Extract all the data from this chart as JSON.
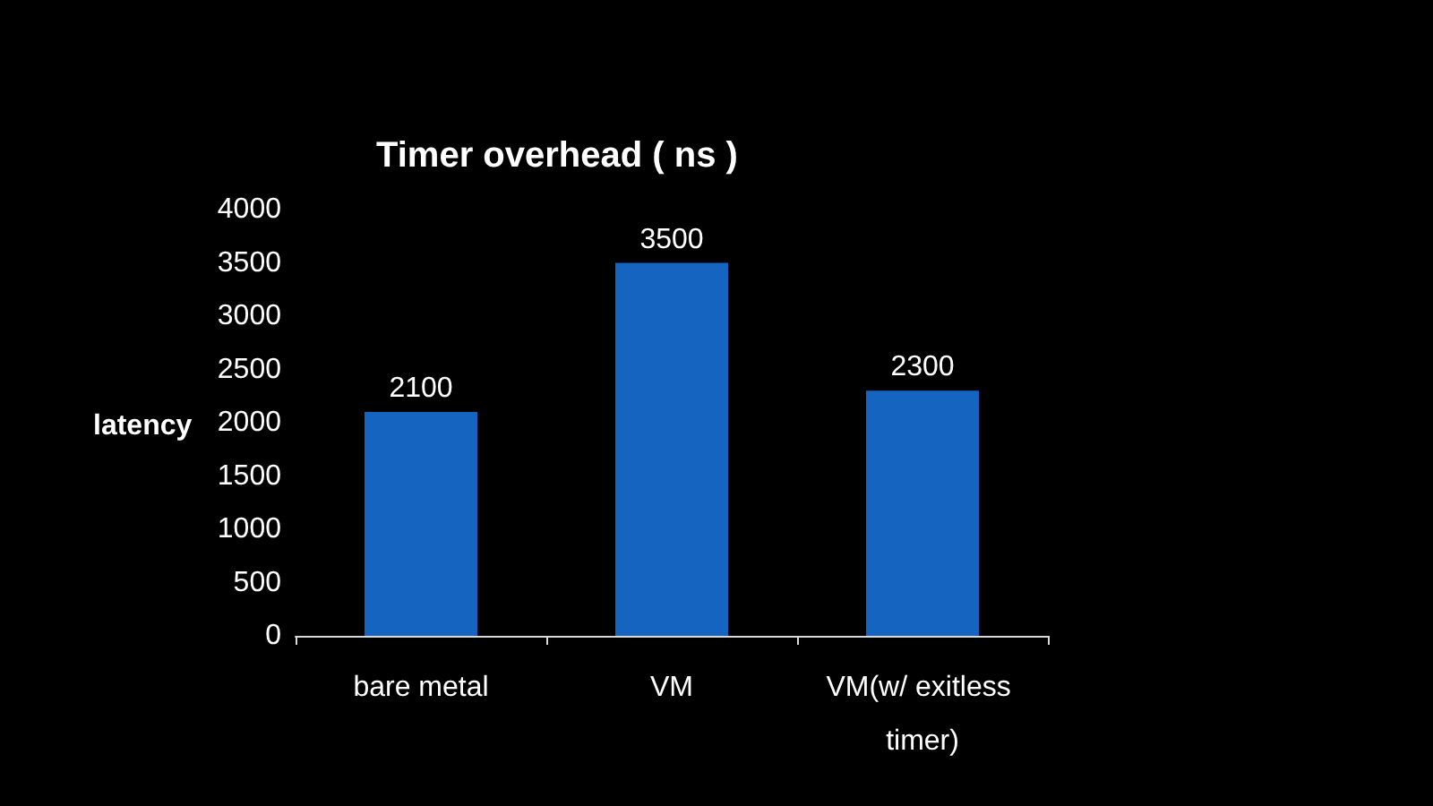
{
  "chart_data": {
    "type": "bar",
    "title": "Timer overhead ( ns )",
    "ylabel": "latency",
    "categories": [
      "bare metal",
      "VM",
      "VM(w/ exitless timer)"
    ],
    "values": [
      2100,
      3500,
      2300
    ],
    "color": "#1565c0",
    "ylim": [
      0,
      4000
    ],
    "yticks": [
      0,
      500,
      1000,
      1500,
      2000,
      2500,
      3000,
      3500,
      4000
    ],
    "grid": false,
    "data_labels": true
  }
}
